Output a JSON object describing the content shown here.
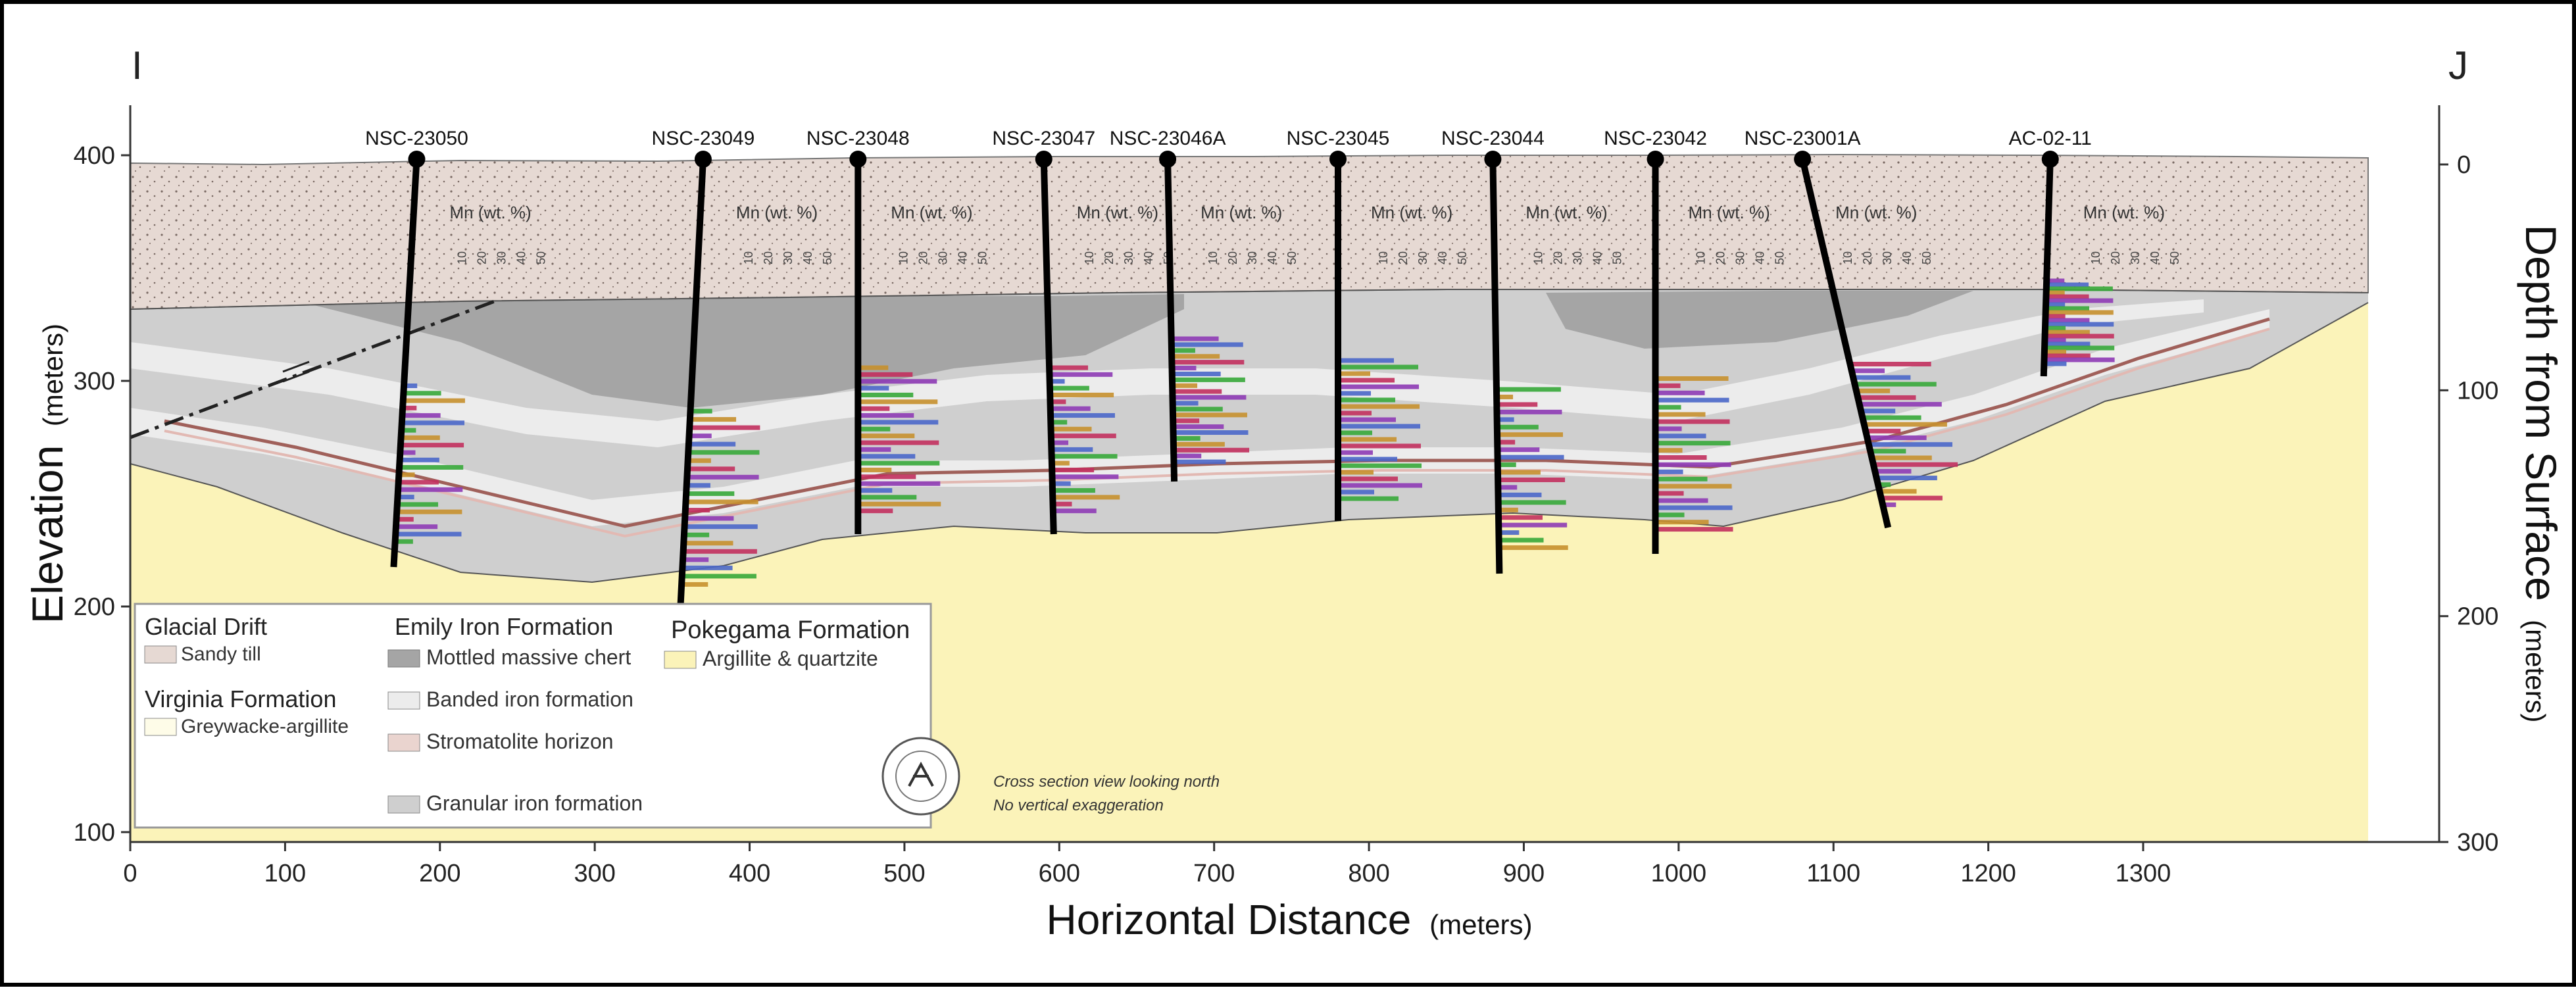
{
  "section_labels": {
    "left": "I",
    "right": "J"
  },
  "axes": {
    "left_label": "Elevation",
    "left_unit": "(meters)",
    "right_label": "Depth from Surface",
    "right_unit": "(meters)",
    "bottom_label": "Horizontal Distance",
    "bottom_unit": "(meters)",
    "x_ticks": [
      "0",
      "100",
      "200",
      "300",
      "400",
      "500",
      "600",
      "700",
      "800",
      "900",
      "1000",
      "1100",
      "1200",
      "1300"
    ],
    "elev_ticks": [
      "400",
      "300",
      "200",
      "100"
    ],
    "depth_ticks": [
      "0",
      "100",
      "200",
      "300"
    ]
  },
  "drillholes": [
    {
      "name": "NSC-23050",
      "x": 185
    },
    {
      "name": "NSC-23049",
      "x": 370
    },
    {
      "name": "NSC-23048",
      "x": 470
    },
    {
      "name": "NSC-23047",
      "x": 590
    },
    {
      "name": "NSC-23046A",
      "x": 670
    },
    {
      "name": "NSC-23045",
      "x": 780
    },
    {
      "name": "NSC-23044",
      "x": 880
    },
    {
      "name": "NSC-23042",
      "x": 985
    },
    {
      "name": "NSC-23001A",
      "x": 1080
    },
    {
      "name": "AC-02-11",
      "x": 1240
    }
  ],
  "mn_label": "Mn (wt. %)",
  "mn_scale": [
    "10",
    "20",
    "30",
    "40",
    "50"
  ],
  "legend": {
    "glacial_title": "Glacial Drift",
    "sandy_till": "Sandy till",
    "virginia_title": "Virginia Formation",
    "greywacke": "Greywacke-argillite",
    "emily_title": "Emily Iron Formation",
    "mottled_chert": "Mottled massive chert",
    "banded_iron": "Banded iron formation",
    "stromatolite": "Stromatolite horizon",
    "granular_iron": "Granular iron formation",
    "pokegama_title": "Pokegama Formation",
    "argillite": "Argillite & quartzite"
  },
  "notes": {
    "line1": "Cross section view looking north",
    "line2": "No vertical exaggeration"
  },
  "colors": {
    "sandy_till": "#e6d9d3",
    "mottled_chert": "#a5a5a5",
    "banded_iron": "#ececec",
    "granular_iron": "#cfcfcf",
    "stromatolite": "#ead4cf",
    "argillite": "#fbf3b9",
    "greywacke": "#fefce8"
  }
}
